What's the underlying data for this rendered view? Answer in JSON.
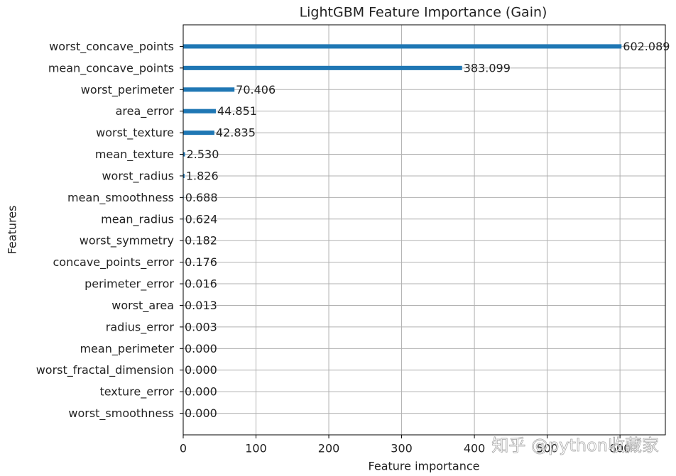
{
  "chart_data": {
    "type": "barh",
    "title": "LightGBM Feature Importance (Gain)",
    "xlabel": "Feature importance",
    "ylabel": "Features",
    "categories": [
      "worst_concave_points",
      "mean_concave_points",
      "worst_perimeter",
      "area_error",
      "worst_texture",
      "mean_texture",
      "worst_radius",
      "mean_smoothness",
      "mean_radius",
      "worst_symmetry",
      "concave_points_error",
      "perimeter_error",
      "worst_area",
      "radius_error",
      "mean_perimeter",
      "worst_fractal_dimension",
      "texture_error",
      "worst_smoothness"
    ],
    "values": [
      602.089,
      383.099,
      70.406,
      44.851,
      42.835,
      2.53,
      1.826,
      0.688,
      0.624,
      0.182,
      0.176,
      0.016,
      0.013,
      0.003,
      0,
      0,
      0,
      0
    ],
    "value_labels": [
      "602.089",
      "383.099",
      "70.406",
      "44.851",
      "42.835",
      "2.530",
      "1.826",
      "0.688",
      "0.624",
      "0.182",
      "0.176",
      "0.016",
      "0.013",
      "0.003",
      "0.000",
      "0.000",
      "0.000",
      "0.000"
    ],
    "color": "#1f77b4",
    "xlim": [
      0,
      662.3
    ],
    "xticks": [
      0,
      100,
      200,
      300,
      400,
      500,
      600
    ],
    "grid": true,
    "watermark": "知乎 @python收藏家"
  }
}
